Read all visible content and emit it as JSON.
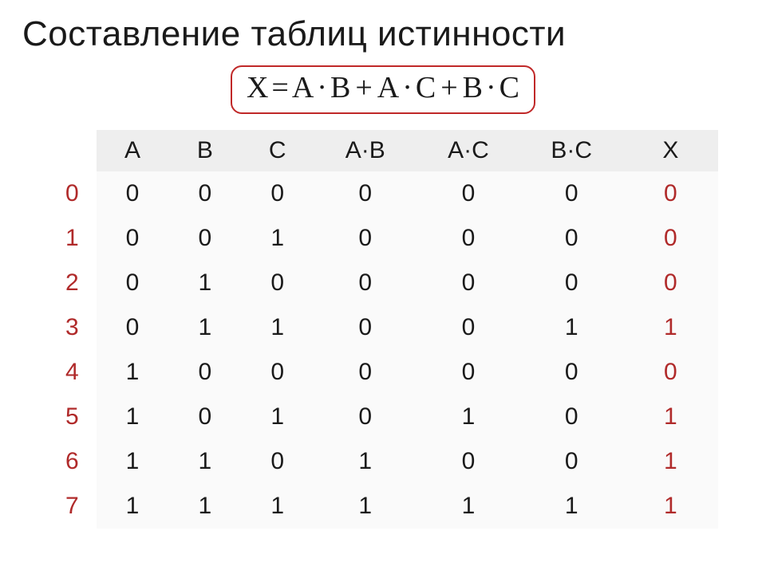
{
  "title": "Составление таблиц истинности",
  "formula": {
    "lhs": "X",
    "terms": [
      {
        "a": "A",
        "b": "B"
      },
      {
        "a": "A",
        "b": "C"
      },
      {
        "a": "B",
        "b": "C"
      }
    ],
    "border_color": "#c02828",
    "text_color": "#1a1a1a"
  },
  "table": {
    "type": "table",
    "header_bg": "#eeeeee",
    "body_bg": "#fafafa",
    "index_color": "#b02a2a",
    "x_color": "#b02a2a",
    "font_size_header": 30,
    "font_size_cell": 30,
    "columns": [
      "A",
      "B",
      "C",
      "A·B",
      "A·C",
      "B·C",
      "X"
    ],
    "indices": [
      "0",
      "1",
      "2",
      "3",
      "4",
      "5",
      "6",
      "7"
    ],
    "rows": [
      {
        "A": "0",
        "B": "0",
        "C": "0",
        "AB": "0",
        "AC": "0",
        "BC": "0",
        "X": "0"
      },
      {
        "A": "0",
        "B": "0",
        "C": "1",
        "AB": "0",
        "AC": "0",
        "BC": "0",
        "X": "0"
      },
      {
        "A": "0",
        "B": "1",
        "C": "0",
        "AB": "0",
        "AC": "0",
        "BC": "0",
        "X": "0"
      },
      {
        "A": "0",
        "B": "1",
        "C": "1",
        "AB": "0",
        "AC": "0",
        "BC": "1",
        "X": "1"
      },
      {
        "A": "1",
        "B": "0",
        "C": "0",
        "AB": "0",
        "AC": "0",
        "BC": "0",
        "X": "0"
      },
      {
        "A": "1",
        "B": "0",
        "C": "1",
        "AB": "0",
        "AC": "1",
        "BC": "0",
        "X": "1"
      },
      {
        "A": "1",
        "B": "1",
        "C": "0",
        "AB": "1",
        "AC": "0",
        "BC": "0",
        "X": "1"
      },
      {
        "A": "1",
        "B": "1",
        "C": "1",
        "AB": "1",
        "AC": "1",
        "BC": "1",
        "X": "1"
      }
    ]
  }
}
